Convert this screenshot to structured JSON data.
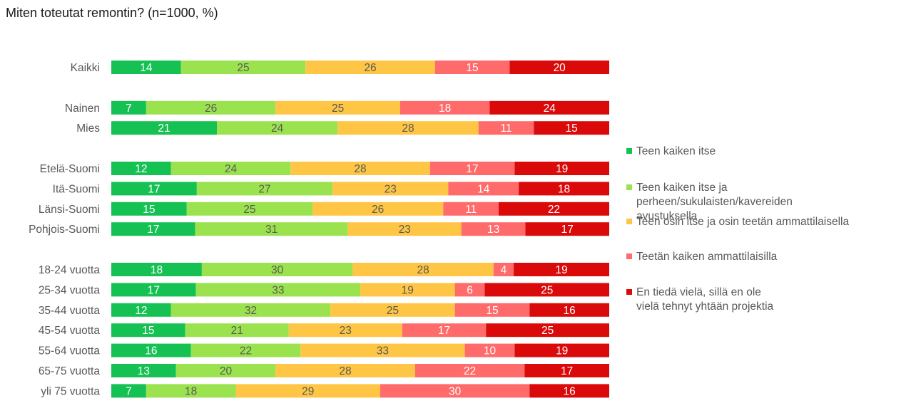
{
  "chart_data": {
    "type": "bar",
    "orientation": "horizontal",
    "stacked": true,
    "title": "Miten toteutat remontin? (n=1000, %)",
    "xlim": [
      0,
      100
    ],
    "grid": false,
    "legend_position": "right",
    "categories": [
      "Kaikki",
      "Nainen",
      "Mies",
      "Etelä-Suomi",
      "Itä-Suomi",
      "Länsi-Suomi",
      "Pohjois-Suomi",
      "18-24 vuotta",
      "25-34 vuotta",
      "35-44 vuotta",
      "45-54 vuotta",
      "55-64 vuotta",
      "65-75 vuotta",
      "yli 75 vuotta"
    ],
    "groups": [
      [
        0
      ],
      [
        1,
        2
      ],
      [
        3,
        4,
        5,
        6
      ],
      [
        7,
        8,
        9,
        10,
        11,
        12,
        13
      ]
    ],
    "series": [
      {
        "name": "Teen kaiken itse",
        "color": "#16c154",
        "label_color": "#ffffff",
        "values": [
          14,
          7,
          21,
          12,
          17,
          15,
          17,
          18,
          17,
          12,
          15,
          16,
          13,
          7
        ]
      },
      {
        "name": "Teen kaiken itse ja perheen/sukulaisten/kavereiden avustuksella",
        "color": "#9be24f",
        "label_color": "#595959",
        "values": [
          25,
          26,
          24,
          24,
          27,
          25,
          31,
          30,
          33,
          32,
          21,
          22,
          20,
          18
        ]
      },
      {
        "name": "Teen osin itse ja osin teetän ammattilaisella",
        "color": "#ffc645",
        "label_color": "#595959",
        "values": [
          26,
          25,
          28,
          28,
          23,
          26,
          23,
          28,
          19,
          25,
          23,
          33,
          28,
          29
        ]
      },
      {
        "name": "Teetän kaiken ammattilaisilla",
        "color": "#ff6b6b",
        "label_color": "#ffffff",
        "values": [
          15,
          18,
          11,
          17,
          14,
          11,
          13,
          4,
          6,
          15,
          17,
          10,
          22,
          30
        ]
      },
      {
        "name": "En tiedä vielä, sillä en ole vielä tehnyt yhtään projektia",
        "color": "#db0a0a",
        "label_color": "#ffffff",
        "values": [
          20,
          24,
          15,
          19,
          18,
          22,
          17,
          19,
          25,
          16,
          25,
          19,
          17,
          16
        ]
      }
    ]
  }
}
